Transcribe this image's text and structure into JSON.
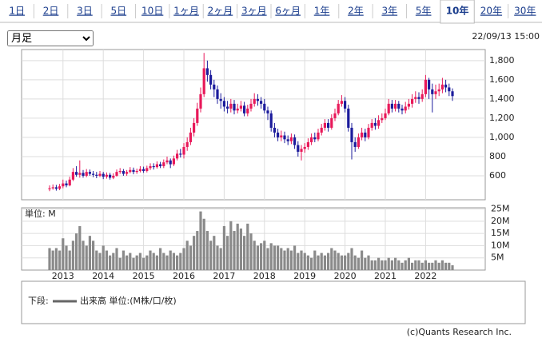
{
  "tabs": [
    "1日",
    "2日",
    "3日",
    "5日",
    "10日",
    "1ヶ月",
    "2ヶ月",
    "3ヶ月",
    "6ヶ月",
    "1年",
    "2年",
    "3年",
    "5年",
    "10年",
    "20年",
    "30年"
  ],
  "selected_tab_index": 13,
  "period_select": "月足",
  "timestamp": "22/09/13 15:00",
  "legend": {
    "label": "下段:",
    "item": "出来高 単位:(M株/口/枚)"
  },
  "copyright": "(c)Quants Research Inc.",
  "chart_data": [
    {
      "type": "candlestick",
      "up_color": "#e8195a",
      "down_color": "#1c1c9c",
      "grid": true,
      "categories": [
        null,
        null,
        null,
        null,
        "2013",
        null,
        null,
        null,
        null,
        null,
        null,
        null,
        null,
        null,
        null,
        null,
        "2014",
        null,
        null,
        null,
        null,
        null,
        null,
        null,
        null,
        null,
        null,
        null,
        "2015",
        null,
        null,
        null,
        null,
        null,
        null,
        null,
        null,
        null,
        null,
        null,
        "2016",
        null,
        null,
        null,
        null,
        null,
        null,
        null,
        null,
        null,
        null,
        null,
        "2017",
        null,
        null,
        null,
        null,
        null,
        null,
        null,
        null,
        null,
        null,
        null,
        "2018",
        null,
        null,
        null,
        null,
        null,
        null,
        null,
        null,
        null,
        null,
        null,
        "2019",
        null,
        null,
        null,
        null,
        null,
        null,
        null,
        null,
        null,
        null,
        null,
        "2020",
        null,
        null,
        null,
        null,
        null,
        null,
        null,
        null,
        null,
        null,
        null,
        "2021",
        null,
        null,
        null,
        null,
        null,
        null,
        null,
        null,
        null,
        null,
        null,
        "2022",
        null,
        null,
        null,
        null,
        null,
        null,
        null,
        null
      ],
      "open": [
        460,
        470,
        480,
        465,
        490,
        520,
        500,
        560,
        640,
        610,
        630,
        600,
        640,
        620,
        610,
        600,
        620,
        590,
        610,
        580,
        600,
        640,
        650,
        620,
        640,
        660,
        640,
        650,
        670,
        650,
        680,
        700,
        690,
        720,
        700,
        740,
        760,
        720,
        780,
        830,
        820,
        900,
        950,
        1050,
        1150,
        1300,
        1450,
        1720,
        1650,
        1550,
        1500,
        1400,
        1380,
        1320,
        1300,
        1350,
        1280,
        1300,
        1330,
        1250,
        1300,
        1350,
        1400,
        1380,
        1350,
        1280,
        1250,
        1100,
        1050,
        1000,
        1020,
        980,
        960,
        1000,
        920,
        850,
        880,
        900,
        950,
        1000,
        980,
        1050,
        1100,
        1150,
        1100,
        1200,
        1250,
        1350,
        1380,
        1300,
        1100,
        950,
        900,
        1000,
        1050,
        1000,
        1100,
        1150,
        1120,
        1180,
        1200,
        1250,
        1350,
        1300,
        1350,
        1300,
        1280,
        1320,
        1350,
        1400,
        1420,
        1400,
        1450,
        1600,
        1500,
        1450,
        1480,
        1500,
        1550,
        1520,
        1480
      ],
      "high": [
        500,
        510,
        505,
        515,
        560,
        550,
        590,
        680,
        700,
        760,
        660,
        670,
        665,
        650,
        640,
        650,
        640,
        635,
        630,
        625,
        665,
        680,
        670,
        660,
        690,
        685,
        675,
        700,
        695,
        705,
        730,
        730,
        750,
        745,
        770,
        800,
        780,
        810,
        870,
        880,
        940,
        1000,
        1100,
        1200,
        1360,
        1520,
        1880,
        1800,
        1700,
        1600,
        1540,
        1460,
        1420,
        1380,
        1400,
        1390,
        1350,
        1380,
        1370,
        1340,
        1400,
        1460,
        1450,
        1420,
        1400,
        1320,
        1280,
        1150,
        1090,
        1070,
        1060,
        1020,
        1040,
        1030,
        960,
        920,
        940,
        990,
        1040,
        1050,
        1090,
        1140,
        1190,
        1190,
        1240,
        1300,
        1390,
        1440,
        1420,
        1340,
        1150,
        1000,
        1040,
        1100,
        1090,
        1140,
        1190,
        1200,
        1230,
        1250,
        1300,
        1400,
        1390,
        1390,
        1380,
        1340,
        1370,
        1400,
        1450,
        1480,
        1470,
        1500,
        1650,
        1620,
        1560,
        1550,
        1560,
        1620,
        1600,
        1560,
        1510
      ],
      "low": [
        440,
        455,
        445,
        450,
        470,
        480,
        490,
        545,
        590,
        580,
        580,
        585,
        600,
        585,
        575,
        585,
        565,
        570,
        560,
        565,
        590,
        620,
        600,
        600,
        625,
        615,
        620,
        635,
        630,
        635,
        660,
        665,
        675,
        680,
        680,
        720,
        680,
        700,
        760,
        790,
        780,
        860,
        920,
        1010,
        1120,
        1260,
        1420,
        1580,
        1500,
        1420,
        1350,
        1300,
        1270,
        1250,
        1260,
        1240,
        1250,
        1270,
        1220,
        1220,
        1270,
        1320,
        1330,
        1300,
        1250,
        1180,
        1060,
        1000,
        960,
        960,
        940,
        920,
        930,
        880,
        800,
        760,
        840,
        870,
        920,
        950,
        960,
        1020,
        1070,
        1060,
        1080,
        1170,
        1230,
        1320,
        1260,
        1060,
        770,
        850,
        880,
        970,
        960,
        980,
        1070,
        1080,
        1090,
        1150,
        1180,
        1230,
        1260,
        1270,
        1260,
        1240,
        1250,
        1290,
        1310,
        1360,
        1350,
        1370,
        1420,
        1400,
        1260,
        1400,
        1430,
        1460,
        1470,
        1430,
        1380
      ],
      "close": [
        470,
        480,
        465,
        490,
        520,
        500,
        560,
        640,
        610,
        630,
        600,
        640,
        620,
        610,
        600,
        620,
        590,
        610,
        580,
        600,
        640,
        650,
        620,
        640,
        660,
        640,
        650,
        670,
        650,
        680,
        700,
        690,
        720,
        700,
        740,
        760,
        720,
        780,
        830,
        820,
        900,
        950,
        1050,
        1150,
        1300,
        1450,
        1720,
        1650,
        1550,
        1500,
        1400,
        1380,
        1320,
        1300,
        1350,
        1280,
        1300,
        1330,
        1250,
        1300,
        1350,
        1400,
        1380,
        1350,
        1280,
        1250,
        1100,
        1050,
        1000,
        1020,
        980,
        960,
        1000,
        920,
        850,
        880,
        900,
        950,
        1000,
        980,
        1050,
        1100,
        1150,
        1100,
        1200,
        1250,
        1350,
        1380,
        1300,
        1100,
        950,
        900,
        1000,
        1050,
        1000,
        1100,
        1150,
        1120,
        1180,
        1200,
        1250,
        1350,
        1300,
        1350,
        1300,
        1280,
        1320,
        1350,
        1400,
        1420,
        1400,
        1450,
        1600,
        1500,
        1450,
        1480,
        1500,
        1550,
        1520,
        1480,
        1430
      ],
      "ylim": [
        350,
        1915
      ],
      "yticks": [
        600,
        {
          "value": 800,
          "label": "800"
        },
        {
          "value": 1000,
          "label": "1,000"
        },
        {
          "value": 1200,
          "label": "1,200"
        },
        {
          "value": 1400,
          "label": "1,400"
        },
        {
          "value": 1600,
          "label": "1,600"
        },
        {
          "value": 1800,
          "label": "1,800"
        }
      ]
    },
    {
      "type": "bar",
      "color": "#8a8a8a",
      "unit_label": "単位: M",
      "grid": true,
      "values": [
        9,
        8,
        9,
        8,
        13,
        10,
        8,
        12,
        15,
        18,
        12,
        10,
        14,
        12,
        8,
        7,
        10,
        8,
        6,
        7,
        9,
        5,
        8,
        6,
        7,
        5,
        6,
        7,
        5,
        6,
        8,
        7,
        6,
        9,
        7,
        6,
        8,
        7,
        6,
        7,
        9,
        12,
        10,
        14,
        16,
        24,
        21,
        16,
        12,
        14,
        10,
        9,
        18,
        14,
        20,
        16,
        19,
        17,
        14,
        19,
        15,
        12,
        10,
        11,
        12,
        9,
        11,
        10,
        10,
        9,
        8,
        9,
        8,
        10,
        7,
        8,
        7,
        6,
        5,
        8,
        6,
        7,
        6,
        7,
        9,
        8,
        7,
        6,
        6,
        7,
        9,
        6,
        5,
        8,
        5,
        6,
        4,
        4,
        5,
        4,
        4,
        5,
        4,
        5,
        4,
        3,
        4,
        5,
        3,
        4,
        4,
        3,
        4,
        3,
        3,
        4,
        3,
        4,
        3,
        3,
        2
      ],
      "ylim": [
        0,
        25.5
      ],
      "yticks": [
        {
          "value": 5,
          "label": "5M"
        },
        {
          "value": 10,
          "label": "10M"
        },
        {
          "value": 15,
          "label": "15M"
        },
        {
          "value": 20,
          "label": "20M"
        },
        {
          "value": 25,
          "label": "25M"
        }
      ]
    }
  ]
}
